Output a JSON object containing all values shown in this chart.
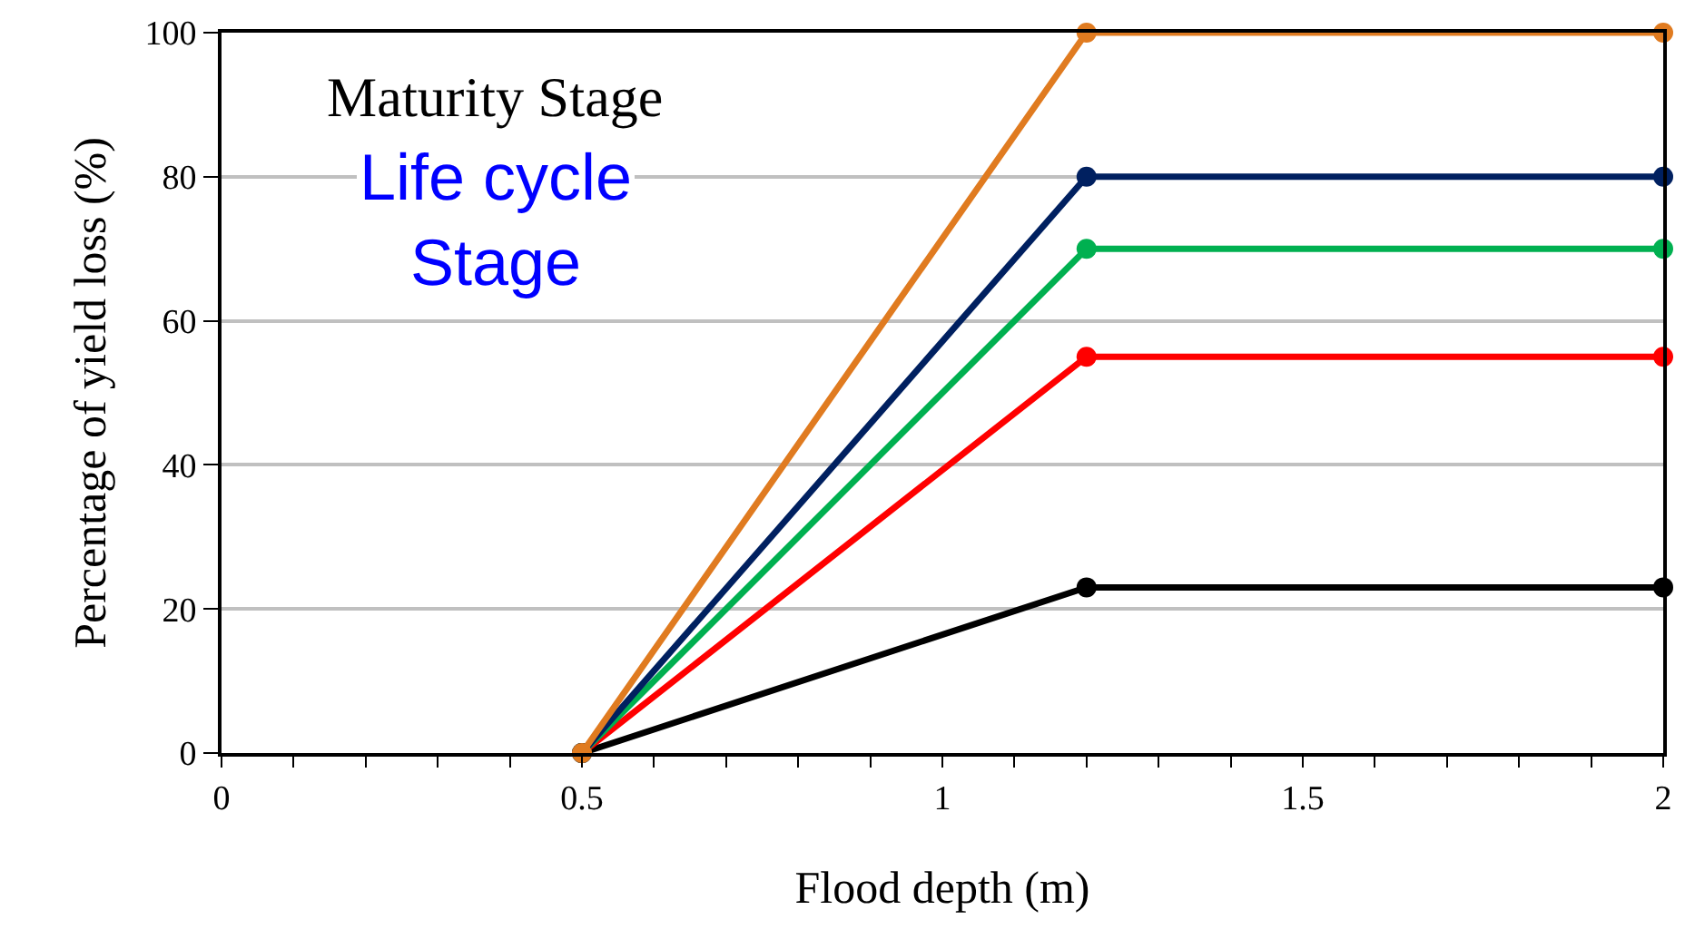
{
  "chart_data": {
    "type": "line",
    "xlabel": "Flood depth (m)",
    "ylabel": "Percentage of yield loss (%)",
    "annotations": [
      "Maturity Stage",
      "Life cycle\nStage"
    ],
    "x": [
      0.5,
      1.2,
      2
    ],
    "series": [
      {
        "color": "#000000",
        "values": [
          0,
          23,
          23
        ]
      },
      {
        "color": "#ff0000",
        "values": [
          0,
          55,
          55
        ]
      },
      {
        "color": "#00b050",
        "values": [
          0,
          70,
          70
        ]
      },
      {
        "color": "#002060",
        "values": [
          0,
          80,
          80
        ]
      },
      {
        "color": "#e07b20",
        "values": [
          0,
          100,
          100
        ]
      }
    ],
    "xlim": [
      0,
      2
    ],
    "xticks": [
      0,
      {
        "value": 0.1,
        "label": null
      },
      {
        "value": 0.2,
        "label": null
      },
      {
        "value": 0.3,
        "label": null
      },
      {
        "value": 0.4,
        "label": null
      },
      0.5,
      {
        "value": 0.6,
        "label": null
      },
      {
        "value": 0.7,
        "label": null
      },
      {
        "value": 0.8,
        "label": null
      },
      {
        "value": 0.9,
        "label": null
      },
      1,
      {
        "value": 1.1,
        "label": null
      },
      {
        "value": 1.2,
        "label": null
      },
      {
        "value": 1.3,
        "label": null
      },
      {
        "value": 1.4,
        "label": null
      },
      1.5,
      {
        "value": 1.6,
        "label": null
      },
      {
        "value": 1.7,
        "label": null
      },
      {
        "value": 1.8,
        "label": null
      },
      {
        "value": 1.9,
        "label": null
      },
      2
    ],
    "ylim": [
      0,
      100
    ],
    "yticks": [
      0,
      20,
      40,
      60,
      80,
      100
    ],
    "grid": "y",
    "marker": "circle",
    "line_style": "solid"
  }
}
